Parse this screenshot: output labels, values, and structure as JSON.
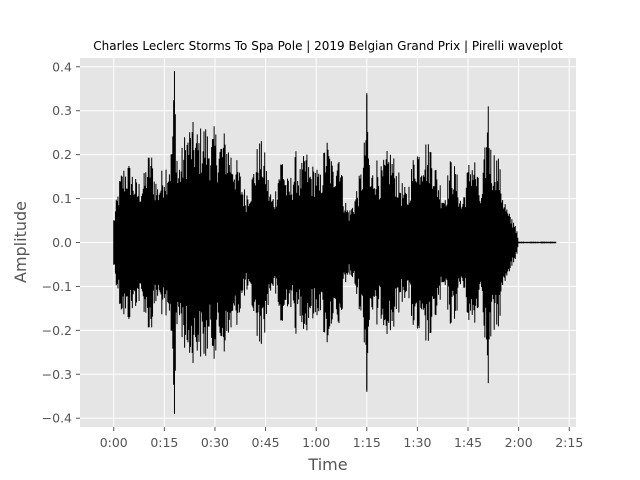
{
  "chart_data": {
    "type": "line",
    "title": "Charles Leclerc Storms To Spa Pole | 2019 Belgian Grand Prix | Pirelli waveplot",
    "xlabel": "Time",
    "ylabel": "Amplitude",
    "xlim": [
      -10,
      137
    ],
    "ylim": [
      -0.42,
      0.42
    ],
    "x_unit": "seconds",
    "x_ticks": [
      0,
      15,
      30,
      45,
      60,
      75,
      90,
      105,
      120,
      135
    ],
    "x_tick_labels": [
      "0:00",
      "0:15",
      "0:30",
      "0:45",
      "1:00",
      "1:15",
      "1:30",
      "1:45",
      "2:00",
      "2:15"
    ],
    "y_ticks": [
      -0.4,
      -0.3,
      -0.2,
      -0.1,
      0.0,
      0.1,
      0.2,
      0.3,
      0.4
    ],
    "y_tick_labels": [
      "−0.4",
      "−0.3",
      "−0.2",
      "−0.1",
      "0.0",
      "0.1",
      "0.2",
      "0.3",
      "0.4"
    ],
    "grid": true,
    "background": "#e5e5e5",
    "grid_color": "#ffffff",
    "line_color": "#000000",
    "series": [
      {
        "x": [
          0,
          1,
          2,
          3,
          4,
          5,
          6,
          7,
          8,
          9,
          10,
          11,
          12,
          13,
          14,
          15,
          16,
          17,
          18,
          19,
          20,
          21,
          22,
          23,
          24,
          25,
          26,
          27,
          28,
          29,
          30,
          31,
          32,
          33,
          34,
          35,
          36,
          37,
          38,
          39,
          40,
          41,
          42,
          43,
          44,
          45,
          46,
          47,
          48,
          49,
          50,
          51,
          52,
          53,
          54,
          55,
          56,
          57,
          58,
          59,
          60,
          61,
          62,
          63,
          64,
          65,
          66,
          67,
          68,
          69,
          70,
          71,
          72,
          73,
          74,
          75,
          76,
          77,
          78,
          79,
          80,
          81,
          82,
          83,
          84,
          85,
          86,
          87,
          88,
          89,
          90,
          91,
          92,
          93,
          94,
          95,
          96,
          97,
          98,
          99,
          100,
          101,
          102,
          103,
          104,
          105,
          106,
          107,
          108,
          109,
          110,
          111,
          112,
          113,
          114,
          115,
          116,
          117,
          118,
          119,
          120,
          121,
          122,
          123,
          124,
          125,
          126,
          127,
          128,
          129,
          130,
          131
        ],
        "max": [
          0.06,
          0.11,
          0.16,
          0.18,
          0.19,
          0.18,
          0.16,
          0.14,
          0.15,
          0.16,
          0.2,
          0.22,
          0.17,
          0.14,
          0.16,
          0.19,
          0.2,
          0.22,
          0.39,
          0.18,
          0.21,
          0.25,
          0.27,
          0.28,
          0.27,
          0.26,
          0.27,
          0.28,
          0.26,
          0.25,
          0.27,
          0.24,
          0.25,
          0.26,
          0.24,
          0.22,
          0.2,
          0.18,
          0.15,
          0.12,
          0.14,
          0.16,
          0.2,
          0.24,
          0.23,
          0.2,
          0.14,
          0.11,
          0.13,
          0.19,
          0.22,
          0.16,
          0.14,
          0.17,
          0.21,
          0.17,
          0.19,
          0.22,
          0.18,
          0.18,
          0.19,
          0.15,
          0.2,
          0.25,
          0.22,
          0.18,
          0.23,
          0.24,
          0.13,
          0.09,
          0.08,
          0.1,
          0.13,
          0.16,
          0.2,
          0.34,
          0.16,
          0.18,
          0.2,
          0.17,
          0.19,
          0.21,
          0.22,
          0.2,
          0.17,
          0.15,
          0.13,
          0.12,
          0.17,
          0.21,
          0.24,
          0.22,
          0.25,
          0.23,
          0.24,
          0.2,
          0.16,
          0.14,
          0.12,
          0.16,
          0.2,
          0.18,
          0.15,
          0.1,
          0.13,
          0.18,
          0.21,
          0.2,
          0.15,
          0.11,
          0.22,
          0.31,
          0.2,
          0.22,
          0.2,
          0.14,
          0.1,
          0.07,
          0.06,
          0.05,
          0.002,
          0.002,
          0.002,
          0.002,
          0.002,
          0.002,
          0.002,
          0.002,
          0.002,
          0.002,
          0.002,
          0.002
        ],
        "min": [
          -0.06,
          -0.11,
          -0.16,
          -0.18,
          -0.19,
          -0.18,
          -0.16,
          -0.14,
          -0.15,
          -0.16,
          -0.2,
          -0.22,
          -0.17,
          -0.14,
          -0.16,
          -0.19,
          -0.2,
          -0.22,
          -0.39,
          -0.18,
          -0.21,
          -0.25,
          -0.27,
          -0.28,
          -0.27,
          -0.26,
          -0.27,
          -0.28,
          -0.26,
          -0.25,
          -0.27,
          -0.24,
          -0.25,
          -0.26,
          -0.24,
          -0.22,
          -0.2,
          -0.18,
          -0.15,
          -0.12,
          -0.14,
          -0.16,
          -0.2,
          -0.24,
          -0.23,
          -0.2,
          -0.14,
          -0.11,
          -0.13,
          -0.19,
          -0.22,
          -0.16,
          -0.14,
          -0.17,
          -0.21,
          -0.17,
          -0.19,
          -0.22,
          -0.18,
          -0.18,
          -0.19,
          -0.15,
          -0.2,
          -0.25,
          -0.22,
          -0.18,
          -0.23,
          -0.24,
          -0.13,
          -0.09,
          -0.08,
          -0.1,
          -0.13,
          -0.16,
          -0.2,
          -0.34,
          -0.16,
          -0.18,
          -0.2,
          -0.17,
          -0.19,
          -0.21,
          -0.22,
          -0.2,
          -0.17,
          -0.15,
          -0.13,
          -0.12,
          -0.17,
          -0.21,
          -0.24,
          -0.22,
          -0.25,
          -0.23,
          -0.24,
          -0.2,
          -0.16,
          -0.14,
          -0.12,
          -0.16,
          -0.2,
          -0.18,
          -0.15,
          -0.1,
          -0.13,
          -0.18,
          -0.21,
          -0.2,
          -0.15,
          -0.11,
          -0.22,
          -0.32,
          -0.2,
          -0.22,
          -0.2,
          -0.14,
          -0.1,
          -0.07,
          -0.06,
          -0.05,
          -0.002,
          -0.002,
          -0.002,
          -0.002,
          -0.002,
          -0.002,
          -0.002,
          -0.002,
          -0.002,
          -0.002,
          -0.002,
          -0.002
        ]
      }
    ]
  }
}
